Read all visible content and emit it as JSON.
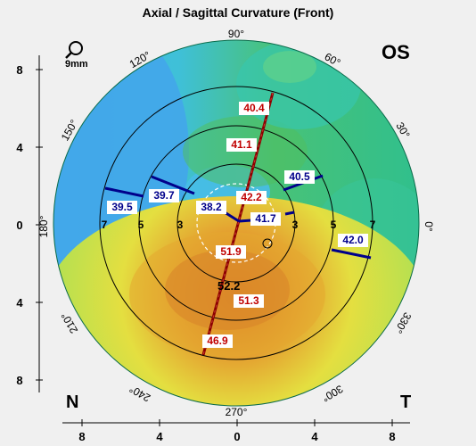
{
  "title": "Axial / Sagittal Curvature (Front)",
  "eye": "OS",
  "zoom_label": "9mm",
  "nasal_label": "N",
  "temporal_label": "T",
  "axis_degrees": [
    {
      "label": "90°",
      "deg": 90
    },
    {
      "label": "60°",
      "deg": 60
    },
    {
      "label": "30°",
      "deg": 30
    },
    {
      "label": "0°",
      "deg": 0
    },
    {
      "label": "330°",
      "deg": 330
    },
    {
      "label": "300°",
      "deg": 300
    },
    {
      "label": "270°",
      "deg": 270
    },
    {
      "label": "240°",
      "deg": 240
    },
    {
      "label": "210°",
      "deg": 210
    },
    {
      "label": "180°",
      "deg": 180
    },
    {
      "label": "150°",
      "deg": 150
    },
    {
      "label": "120°",
      "deg": 120
    }
  ],
  "left_scale_ticks": [
    "8",
    "4",
    "0",
    "4",
    "8"
  ],
  "bottom_scale_ticks": [
    "8",
    "4",
    "0",
    "4",
    "8"
  ],
  "ring_labels": [
    "7",
    "5",
    "3",
    "3",
    "5",
    "7"
  ],
  "steep_meridian_values": [
    "40.4",
    "41.1",
    "42.2",
    "51.9",
    "51.3",
    "46.9"
  ],
  "flat_meridian_values": [
    "39.5",
    "39.7",
    "38.2",
    "41.7",
    "40.5",
    "42.0"
  ],
  "center_value": "52.2",
  "colors": {
    "steep": "#c00000",
    "flat": "#00008b",
    "blue": "#3fa9e0",
    "green": "#4cc26a",
    "yellow": "#e8e040",
    "orange": "#e49a2a"
  }
}
